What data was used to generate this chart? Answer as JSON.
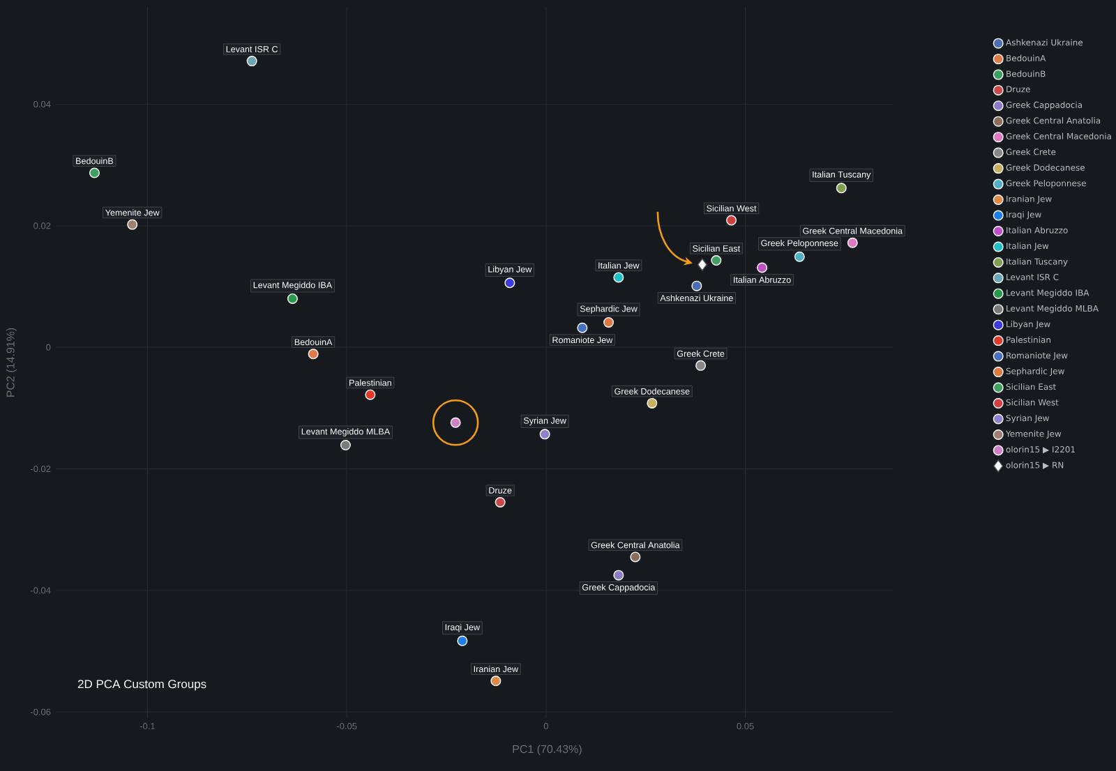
{
  "chart_data": {
    "type": "scatter",
    "title": "2D PCA Custom Groups",
    "xlabel": "PC1 (70.43%)",
    "ylabel": "PC2 (14.91%)",
    "xlim": [
      -0.123,
      0.087
    ],
    "ylim": [
      -0.061,
      0.056
    ],
    "xticks": [
      -0.1,
      -0.05,
      0,
      0.05
    ],
    "yticks": [
      -0.06,
      -0.04,
      -0.02,
      0,
      0.02,
      0.04
    ],
    "grid": true,
    "legend": "top right",
    "series": [
      {
        "name": "Ashkenazi Ukraine",
        "color": "#4a6fb5",
        "marker": "circle",
        "x": [
          0.0378
        ],
        "values": [
          0.0101
        ]
      },
      {
        "name": "BedouinA",
        "color": "#e07b4a",
        "marker": "circle",
        "x": [
          -0.0584
        ],
        "values": [
          -0.0011
        ]
      },
      {
        "name": "BedouinB",
        "color": "#3ca060",
        "marker": "circle",
        "x": [
          -0.1133
        ],
        "values": [
          0.0287
        ]
      },
      {
        "name": "Druze",
        "color": "#c94a4a",
        "marker": "circle",
        "x": [
          -0.0115
        ],
        "values": [
          -0.0255
        ]
      },
      {
        "name": "Greek Cappadocia",
        "color": "#8b7bc8",
        "marker": "circle",
        "x": [
          0.0182
        ],
        "values": [
          -0.0375
        ]
      },
      {
        "name": "Greek Central Anatolia",
        "color": "#8c6d5a",
        "marker": "circle",
        "x": [
          0.0224
        ],
        "values": [
          -0.0345
        ]
      },
      {
        "name": "Greek Central Macedonia",
        "color": "#e077c0",
        "marker": "circle",
        "x": [
          0.0769
        ],
        "values": [
          0.0172
        ]
      },
      {
        "name": "Greek Crete",
        "color": "#888888",
        "marker": "circle",
        "x": [
          0.0388
        ],
        "values": [
          -0.003
        ]
      },
      {
        "name": "Greek Dodecanese",
        "color": "#c8b060",
        "marker": "circle",
        "x": [
          0.0266
        ],
        "values": [
          -0.0092
        ]
      },
      {
        "name": "Greek Peloponnese",
        "color": "#4fb0c8",
        "marker": "circle",
        "x": [
          0.0636
        ],
        "values": [
          0.0149
        ]
      },
      {
        "name": "Iranian Jew",
        "color": "#e08a4a",
        "marker": "circle",
        "x": [
          -0.0126
        ],
        "values": [
          -0.0549
        ]
      },
      {
        "name": "Iraqi Jew",
        "color": "#1f7fe8",
        "marker": "circle",
        "x": [
          -0.021
        ],
        "values": [
          -0.0483
        ]
      },
      {
        "name": "Italian Abruzzo",
        "color": "#c050c8",
        "marker": "circle",
        "x": [
          0.0542
        ],
        "values": [
          0.0131
        ]
      },
      {
        "name": "Italian Jew",
        "color": "#20c0c8",
        "marker": "circle",
        "x": [
          0.0182
        ],
        "values": [
          0.0115
        ]
      },
      {
        "name": "Italian Tuscany",
        "color": "#80a050",
        "marker": "circle",
        "x": [
          0.0741
        ],
        "values": [
          0.0262
        ]
      },
      {
        "name": "Levant ISR C",
        "color": "#6aa8b8",
        "marker": "circle",
        "x": [
          -0.0738
        ],
        "values": [
          0.0471
        ]
      },
      {
        "name": "Levant Megiddo IBA",
        "color": "#2a9a4a",
        "marker": "circle",
        "x": [
          -0.0636
        ],
        "values": [
          0.008
        ]
      },
      {
        "name": "Levant Megiddo MLBA",
        "color": "#7a7a7a",
        "marker": "circle",
        "x": [
          -0.0503
        ],
        "values": [
          -0.0161
        ]
      },
      {
        "name": "Libyan Jew",
        "color": "#3a3ae0",
        "marker": "circle",
        "x": [
          -0.0091
        ],
        "values": [
          0.0106
        ]
      },
      {
        "name": "Palestinian",
        "color": "#e03a2a",
        "marker": "circle",
        "x": [
          -0.0441
        ],
        "values": [
          -0.0078
        ]
      },
      {
        "name": "Romaniote Jew",
        "color": "#4a70c0",
        "marker": "circle",
        "x": [
          0.0091
        ],
        "values": [
          0.0032
        ]
      },
      {
        "name": "Sephardic Jew",
        "color": "#e07a40",
        "marker": "circle",
        "x": [
          0.0157
        ],
        "values": [
          0.0041
        ]
      },
      {
        "name": "Sicilian East",
        "color": "#40a060",
        "marker": "circle",
        "x": [
          0.0427
        ],
        "values": [
          0.0143
        ]
      },
      {
        "name": "Sicilian West",
        "color": "#d04040",
        "marker": "circle",
        "x": [
          0.0465
        ],
        "values": [
          0.0209
        ]
      },
      {
        "name": "Syrian Jew",
        "color": "#9080d0",
        "marker": "circle",
        "x": [
          -0.0003
        ],
        "values": [
          -0.0143
        ]
      },
      {
        "name": "Yemenite Jew",
        "color": "#a08070",
        "marker": "circle",
        "x": [
          -0.1038
        ],
        "values": [
          0.0202
        ]
      },
      {
        "name": "olorin15 ▶ I2201",
        "color": "#d080c8",
        "marker": "circle",
        "x": [
          -0.0227
        ],
        "values": [
          -0.0124
        ]
      },
      {
        "name": "olorin15 ▶ RN",
        "color": "#ffffff",
        "marker": "diamond",
        "x": [
          0.0392
        ],
        "values": [
          0.0136
        ]
      }
    ],
    "annotations": [
      {
        "text": "Ashkenazi Ukraine",
        "x": 0.0378,
        "y": 0.0101
      },
      {
        "text": "BedouinA",
        "x": -0.0584,
        "y": -0.0011
      },
      {
        "text": "BedouinB",
        "x": -0.1133,
        "y": 0.0287
      },
      {
        "text": "Druze",
        "x": -0.0115,
        "y": -0.0255
      },
      {
        "text": "Greek Cappadocia",
        "x": 0.0182,
        "y": -0.0375
      },
      {
        "text": "Greek Central Anatolia",
        "x": 0.0224,
        "y": -0.0345
      },
      {
        "text": "Greek Central Macedonia",
        "x": 0.0769,
        "y": 0.0172
      },
      {
        "text": "Greek Crete",
        "x": 0.0388,
        "y": -0.003
      },
      {
        "text": "Greek Dodecanese",
        "x": 0.0266,
        "y": -0.0092
      },
      {
        "text": "Greek Peloponnese",
        "x": 0.0636,
        "y": 0.0149
      },
      {
        "text": "Iranian Jew",
        "x": -0.0126,
        "y": -0.0549
      },
      {
        "text": "Iraqi Jew",
        "x": -0.021,
        "y": -0.0483
      },
      {
        "text": "Italian Abruzzo",
        "x": 0.0542,
        "y": 0.0131
      },
      {
        "text": "Italian Jew",
        "x": 0.0182,
        "y": 0.0115
      },
      {
        "text": "Italian Tuscany",
        "x": 0.0741,
        "y": 0.0262
      },
      {
        "text": "Levant ISR C",
        "x": -0.0738,
        "y": 0.0471
      },
      {
        "text": "Levant Megiddo IBA",
        "x": -0.0636,
        "y": 0.008
      },
      {
        "text": "Levant Megiddo MLBA",
        "x": -0.0503,
        "y": -0.0161
      },
      {
        "text": "Libyan Jew",
        "x": -0.0091,
        "y": 0.0106
      },
      {
        "text": "Palestinian",
        "x": -0.0441,
        "y": -0.0078
      },
      {
        "text": "Romaniote Jew",
        "x": 0.0091,
        "y": 0.0032
      },
      {
        "text": "Sephardic Jew",
        "x": 0.0157,
        "y": 0.0041
      },
      {
        "text": "Sicilian East",
        "x": 0.0427,
        "y": 0.0143
      },
      {
        "text": "Sicilian West",
        "x": 0.0465,
        "y": 0.0209
      },
      {
        "text": "Syrian Jew",
        "x": -0.0003,
        "y": -0.0143
      },
      {
        "text": "Yemenite Jew",
        "x": -0.1038,
        "y": 0.0202
      }
    ]
  }
}
